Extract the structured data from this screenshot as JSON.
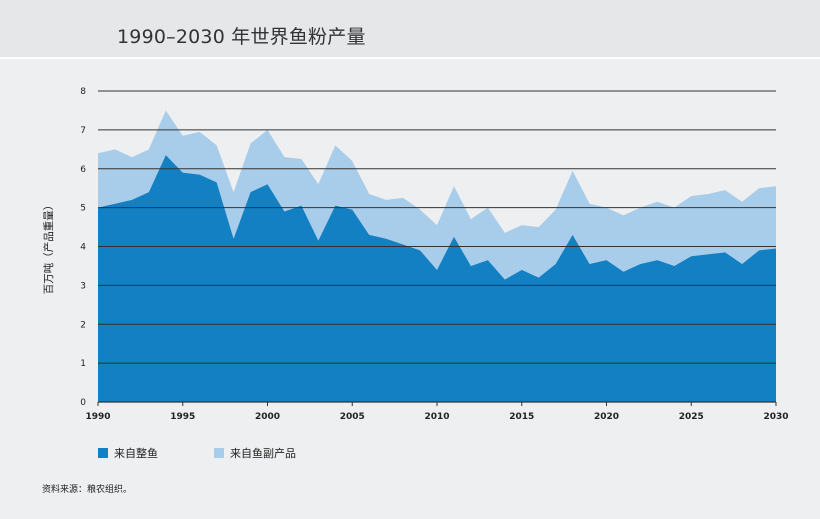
{
  "title": "1990–2030 年世界鱼粉产量",
  "source": "资料来源：粮农组织。",
  "colors": {
    "whole_fish": "#1380c3",
    "by_products": "#a8cdeb",
    "grid": "#333333"
  },
  "chart_data": {
    "type": "area",
    "stacked": true,
    "title": "1990–2030 年世界鱼粉产量",
    "ylabel": "百万吨（产品重量）",
    "xlabel": "",
    "xlim": [
      1990,
      2030
    ],
    "ylim": [
      0,
      8
    ],
    "xticks": [
      1990,
      1995,
      2000,
      2005,
      2010,
      2015,
      2020,
      2025,
      2030
    ],
    "yticks": [
      0,
      1,
      2,
      3,
      4,
      5,
      6,
      7,
      8
    ],
    "grid": "horizontal",
    "legend_position": "bottom-left",
    "x": [
      1990,
      1991,
      1992,
      1993,
      1994,
      1995,
      1996,
      1997,
      1998,
      1999,
      2000,
      2001,
      2002,
      2003,
      2004,
      2005,
      2006,
      2007,
      2008,
      2009,
      2010,
      2011,
      2012,
      2013,
      2014,
      2015,
      2016,
      2017,
      2018,
      2019,
      2020,
      2021,
      2022,
      2023,
      2024,
      2025,
      2026,
      2027,
      2028,
      2029,
      2030
    ],
    "series": [
      {
        "name": "来自整鱼",
        "values": [
          5.0,
          5.1,
          5.2,
          5.4,
          6.35,
          5.9,
          5.85,
          5.65,
          4.2,
          5.4,
          5.6,
          4.9,
          5.05,
          4.15,
          5.05,
          4.95,
          4.3,
          4.2,
          4.05,
          3.9,
          3.4,
          4.25,
          3.5,
          3.65,
          3.15,
          3.4,
          3.2,
          3.55,
          4.3,
          3.55,
          3.65,
          3.35,
          3.55,
          3.65,
          3.5,
          3.75,
          3.8,
          3.85,
          3.55,
          3.9,
          3.95
        ]
      },
      {
        "name": "来自鱼副产品",
        "values": [
          1.4,
          1.4,
          1.1,
          1.1,
          1.15,
          0.95,
          1.1,
          0.95,
          1.2,
          1.25,
          1.4,
          1.4,
          1.2,
          1.45,
          1.55,
          1.25,
          1.05,
          1.0,
          1.2,
          1.05,
          1.15,
          1.3,
          1.2,
          1.35,
          1.2,
          1.15,
          1.3,
          1.4,
          1.65,
          1.55,
          1.35,
          1.45,
          1.45,
          1.5,
          1.5,
          1.55,
          1.55,
          1.6,
          1.6,
          1.6,
          1.6
        ]
      }
    ]
  }
}
